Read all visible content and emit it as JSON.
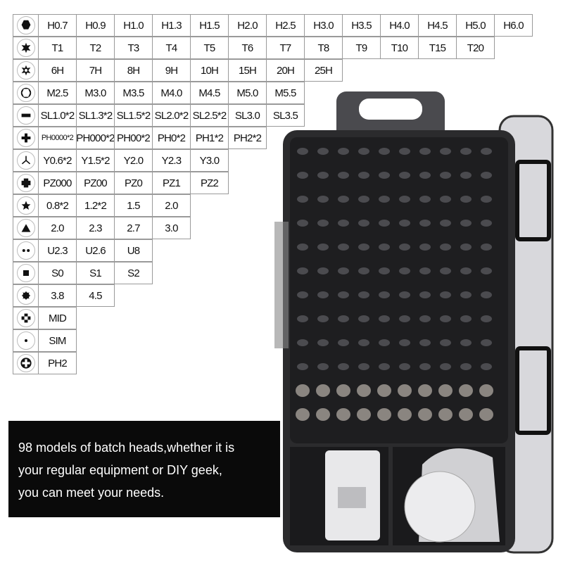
{
  "spec_table": {
    "rows": [
      {
        "icon": "hex-icon",
        "values": [
          "H0.7",
          "H0.9",
          "H1.0",
          "H1.3",
          "H1.5",
          "H2.0",
          "H2.5",
          "H3.0",
          "H3.5",
          "H4.0",
          "H4.5",
          "H5.0",
          "H6.0"
        ]
      },
      {
        "icon": "torx-icon",
        "values": [
          "T1",
          "T2",
          "T3",
          "T4",
          "T5",
          "T6",
          "T7",
          "T8",
          "T9",
          "T10",
          "T15",
          "T20"
        ]
      },
      {
        "icon": "torx-hollow-icon",
        "values": [
          "6H",
          "7H",
          "8H",
          "9H",
          "10H",
          "15H",
          "20H",
          "25H"
        ]
      },
      {
        "icon": "hex-socket-icon",
        "values": [
          "M2.5",
          "M3.0",
          "M3.5",
          "M4.0",
          "M4.5",
          "M5.0",
          "M5.5"
        ]
      },
      {
        "icon": "slotted-icon",
        "values": [
          "SL1.0*2",
          "SL1.3*2",
          "SL1.5*2",
          "SL2.0*2",
          "SL2.5*2",
          "SL3.0",
          "SL3.5"
        ]
      },
      {
        "icon": "phillips-icon",
        "values": [
          "PH0000*2",
          "PH000*2",
          "PH00*2",
          "PH0*2",
          "PH1*2",
          "PH2*2"
        ]
      },
      {
        "icon": "tri-wing-icon",
        "values": [
          "Y0.6*2",
          "Y1.5*2",
          "Y2.0",
          "Y2.3",
          "Y3.0"
        ]
      },
      {
        "icon": "pozidriv-icon",
        "values": [
          "PZ000",
          "PZ00",
          "PZ0",
          "PZ1",
          "PZ2"
        ]
      },
      {
        "icon": "pentalobe-star-icon",
        "values": [
          "0.8*2",
          "1.2*2",
          "1.5",
          "2.0"
        ]
      },
      {
        "icon": "triangle-icon",
        "values": [
          "2.0",
          "2.3",
          "2.7",
          "3.0"
        ]
      },
      {
        "icon": "u-type-icon",
        "values": [
          "U2.3",
          "U2.6",
          "U8"
        ]
      },
      {
        "icon": "square-icon",
        "values": [
          "S0",
          "S1",
          "S2"
        ]
      },
      {
        "icon": "gear-star-icon",
        "values": [
          "3.8",
          "4.5"
        ]
      },
      {
        "icon": "mid-cross-icon",
        "values": [
          "MID"
        ]
      },
      {
        "icon": "sim-pin-icon",
        "values": [
          "SIM"
        ]
      },
      {
        "icon": "ph2-cross-icon",
        "values": [
          "PH2"
        ]
      }
    ]
  },
  "caption": {
    "lines": [
      "98 models of batch heads,whether it is",
      "your regular equipment or DIY geek,",
      "you can meet your needs."
    ]
  },
  "colors": {
    "case": "#2b2b2d",
    "tray": "#1e1e20",
    "accessory": "#e8e8ea",
    "caption_bg": "#0a0a0a"
  }
}
